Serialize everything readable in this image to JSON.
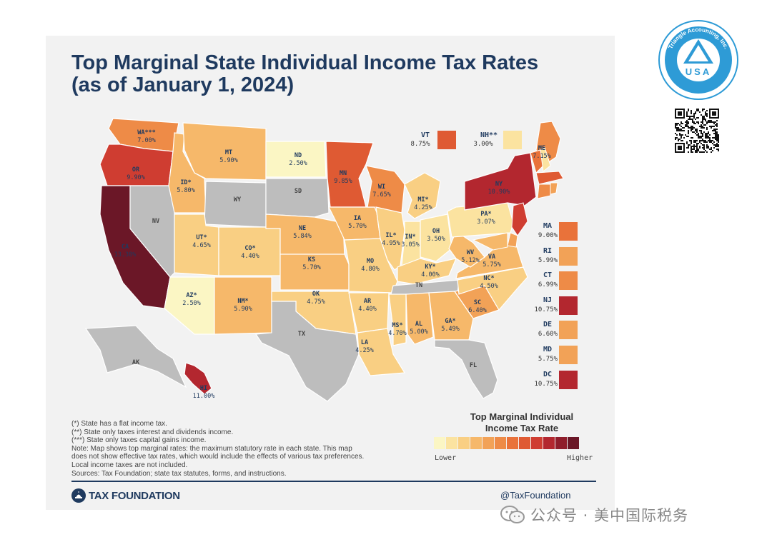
{
  "title_line1": "Top Marginal State Individual Income Tax Rates",
  "title_line2": "(as of January 1, 2024)",
  "colors": {
    "none": "#bdbdbd",
    "scale": [
      "#fbf6c4",
      "#fbe3a0",
      "#f9cf83",
      "#f6b86a",
      "#f2a257",
      "#ee8b47",
      "#e9723a",
      "#df5a33",
      "#cf3d31",
      "#b3272f",
      "#8f1d2b",
      "#6b1727"
    ]
  },
  "states": [
    {
      "abbr": "WA***",
      "rate": "7.00%"
    },
    {
      "abbr": "OR",
      "rate": "9.90%"
    },
    {
      "abbr": "CA",
      "rate": "13.30%"
    },
    {
      "abbr": "NV",
      "rate": ""
    },
    {
      "abbr": "ID*",
      "rate": "5.80%"
    },
    {
      "abbr": "MT",
      "rate": "5.90%"
    },
    {
      "abbr": "WY",
      "rate": ""
    },
    {
      "abbr": "UT*",
      "rate": "4.65%"
    },
    {
      "abbr": "AZ*",
      "rate": "2.50%"
    },
    {
      "abbr": "CO*",
      "rate": "4.40%"
    },
    {
      "abbr": "NM*",
      "rate": "5.90%"
    },
    {
      "abbr": "ND",
      "rate": "2.50%"
    },
    {
      "abbr": "SD",
      "rate": ""
    },
    {
      "abbr": "NE",
      "rate": "5.84%"
    },
    {
      "abbr": "KS",
      "rate": "5.70%"
    },
    {
      "abbr": "OK",
      "rate": "4.75%"
    },
    {
      "abbr": "TX",
      "rate": ""
    },
    {
      "abbr": "MN",
      "rate": "9.85%"
    },
    {
      "abbr": "IA",
      "rate": "5.70%"
    },
    {
      "abbr": "MO",
      "rate": "4.80%"
    },
    {
      "abbr": "AR",
      "rate": "4.40%"
    },
    {
      "abbr": "LA",
      "rate": "4.25%"
    },
    {
      "abbr": "WI",
      "rate": "7.65%"
    },
    {
      "abbr": "IL*",
      "rate": "4.95%"
    },
    {
      "abbr": "MI*",
      "rate": "4.25%"
    },
    {
      "abbr": "IN*",
      "rate": "3.05%"
    },
    {
      "abbr": "OH",
      "rate": "3.50%"
    },
    {
      "abbr": "KY*",
      "rate": "4.00%"
    },
    {
      "abbr": "TN",
      "rate": ""
    },
    {
      "abbr": "MS*",
      "rate": "4.70%"
    },
    {
      "abbr": "AL",
      "rate": "5.00%"
    },
    {
      "abbr": "GA*",
      "rate": "5.49%"
    },
    {
      "abbr": "FL",
      "rate": ""
    },
    {
      "abbr": "SC",
      "rate": "6.40%"
    },
    {
      "abbr": "NC*",
      "rate": "4.50%"
    },
    {
      "abbr": "VA",
      "rate": "5.75%"
    },
    {
      "abbr": "WV",
      "rate": "5.12%"
    },
    {
      "abbr": "PA*",
      "rate": "3.07%"
    },
    {
      "abbr": "NY",
      "rate": "10.90%"
    },
    {
      "abbr": "ME",
      "rate": "7.15%"
    },
    {
      "abbr": "AK",
      "rate": ""
    },
    {
      "abbr": "HI",
      "rate": "11.00%"
    }
  ],
  "callouts": [
    {
      "abbr": "VT",
      "rate": "8.75%"
    },
    {
      "abbr": "NH**",
      "rate": "3.00%"
    }
  ],
  "northeast": [
    {
      "abbr": "MA",
      "rate": "9.00%"
    },
    {
      "abbr": "RI",
      "rate": "5.99%"
    },
    {
      "abbr": "CT",
      "rate": "6.99%"
    },
    {
      "abbr": "NJ",
      "rate": "10.75%"
    },
    {
      "abbr": "DE",
      "rate": "6.60%"
    },
    {
      "abbr": "MD",
      "rate": "5.75%"
    },
    {
      "abbr": "DC",
      "rate": "10.75%"
    }
  ],
  "notes": [
    "(*) State has a flat income tax.",
    "(**) State only taxes interest and dividends income.",
    "(***) State only taxes capital gains income.",
    "Note: Map shows top marginal rates: the maximum statutory rate in each state. This map",
    "does not show effective tax rates, which would include the effects of various tax preferences.",
    "Local income taxes are not included.",
    "Sources: Tax Foundation; state tax statutes, forms, and instructions."
  ],
  "legend": {
    "title_line1": "Top Marginal Individual",
    "title_line2": "Income Tax Rate",
    "lower": "Lower",
    "higher": "Higher"
  },
  "footer": {
    "org": "TAX FOUNDATION",
    "handle": "@TaxFoundation"
  },
  "seal": {
    "text": "Triangle Accounting, Inc.",
    "center": "USA"
  },
  "wechat_caption": "公众号 · 美中国际税务"
}
